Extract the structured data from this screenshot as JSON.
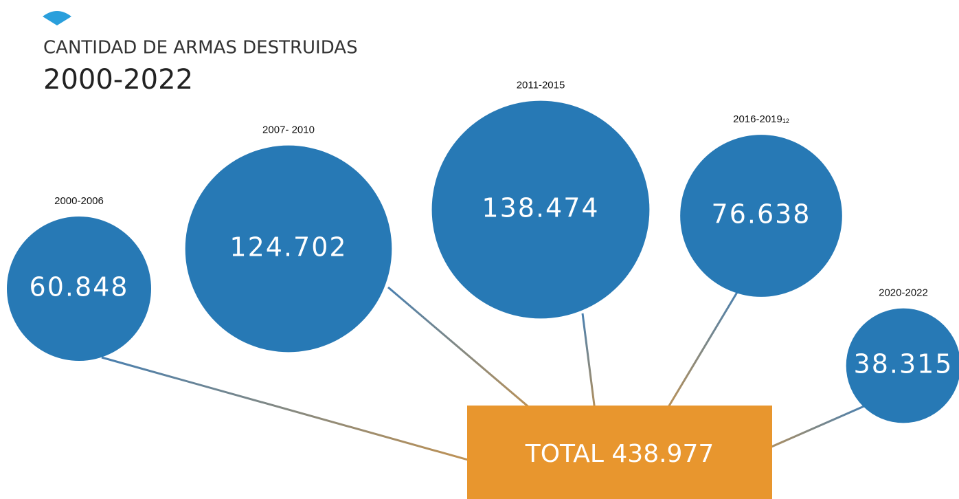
{
  "chart_data": {
    "type": "bubble",
    "title": "CANTIDAD DE ARMAS DESTRUIDAS",
    "subtitle": "2000-2022",
    "categories": [
      "2000-2006",
      "2007- 2010",
      "2011-2015",
      "2016-2019",
      "2020-2022"
    ],
    "footnote_mark": "12",
    "values": [
      60848,
      124702,
      138474,
      76638,
      38315
    ],
    "value_labels": [
      "60.848",
      "124.702",
      "138.474",
      "76.638",
      "38.315"
    ],
    "color": "#2779b5",
    "total_prefix": "TOTAL",
    "total": {
      "value": 438977,
      "label": "438.977"
    },
    "total_color": "#e8962e"
  }
}
